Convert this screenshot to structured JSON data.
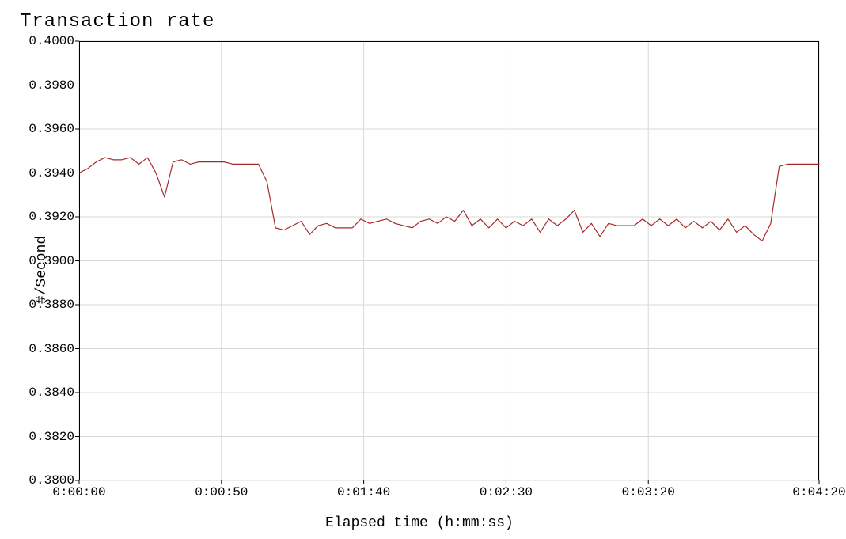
{
  "chart": {
    "type": "line",
    "title": "Transaction rate",
    "xlabel": "Elapsed time (h:mm:ss)",
    "ylabel": "#/Second",
    "title_fontsize": 24,
    "label_fontsize": 18,
    "tick_fontsize": 16,
    "font_family": "Courier New, monospace",
    "background_color": "#ffffff",
    "plot_border_color": "#000000",
    "grid_color": "#d9d9d9",
    "grid_line_width": 1,
    "line_color": "#a52a2a",
    "line_width": 1.2,
    "xlim_seconds": [
      0,
      260
    ],
    "ylim": [
      0.38,
      0.4
    ],
    "y_ticks": [
      0.38,
      0.382,
      0.384,
      0.386,
      0.388,
      0.39,
      0.392,
      0.394,
      0.396,
      0.398,
      0.4
    ],
    "y_tick_labels": [
      "0.3800",
      "0.3820",
      "0.3840",
      "0.3860",
      "0.3880",
      "0.3900",
      "0.3920",
      "0.3940",
      "0.3960",
      "0.3980",
      "0.4000"
    ],
    "x_ticks_seconds": [
      0,
      50,
      100,
      150,
      200,
      260
    ],
    "x_tick_labels": [
      "0:00:00",
      "0:00:50",
      "0:01:40",
      "0:02:30",
      "0:03:20",
      "0:04:20"
    ],
    "series": {
      "x_seconds": [
        0,
        3,
        6,
        9,
        12,
        15,
        18,
        21,
        24,
        27,
        30,
        33,
        36,
        39,
        42,
        45,
        48,
        51,
        54,
        57,
        60,
        63,
        66,
        69,
        72,
        75,
        78,
        81,
        84,
        87,
        90,
        93,
        96,
        99,
        102,
        105,
        108,
        111,
        114,
        117,
        120,
        123,
        126,
        129,
        132,
        135,
        138,
        141,
        144,
        147,
        150,
        153,
        156,
        159,
        162,
        165,
        168,
        171,
        174,
        177,
        180,
        183,
        186,
        189,
        192,
        195,
        198,
        201,
        204,
        207,
        210,
        213,
        216,
        219,
        222,
        225,
        228,
        231,
        234,
        237,
        240,
        243,
        246,
        249,
        252,
        255,
        258,
        260
      ],
      "y_values": [
        0.394,
        0.3942,
        0.3945,
        0.3947,
        0.3946,
        0.3946,
        0.3947,
        0.3944,
        0.3947,
        0.394,
        0.3929,
        0.3945,
        0.3946,
        0.3944,
        0.3945,
        0.3945,
        0.3945,
        0.3945,
        0.3944,
        0.3944,
        0.3944,
        0.3944,
        0.3936,
        0.3915,
        0.3914,
        0.3916,
        0.3918,
        0.3912,
        0.3916,
        0.3917,
        0.3915,
        0.3915,
        0.3915,
        0.3919,
        0.3917,
        0.3918,
        0.3919,
        0.3917,
        0.3916,
        0.3915,
        0.3918,
        0.3919,
        0.3917,
        0.392,
        0.3918,
        0.3923,
        0.3916,
        0.3919,
        0.3915,
        0.3919,
        0.3915,
        0.3918,
        0.3916,
        0.3919,
        0.3913,
        0.3919,
        0.3916,
        0.3919,
        0.3923,
        0.3913,
        0.3917,
        0.3911,
        0.3917,
        0.3916,
        0.3916,
        0.3916,
        0.3919,
        0.3916,
        0.3919,
        0.3916,
        0.3919,
        0.3915,
        0.3918,
        0.3915,
        0.3918,
        0.3914,
        0.3919,
        0.3913,
        0.3916,
        0.3912,
        0.3909,
        0.3917,
        0.3943,
        0.3944,
        0.3944,
        0.3944,
        0.3944,
        0.3944
      ]
    }
  }
}
